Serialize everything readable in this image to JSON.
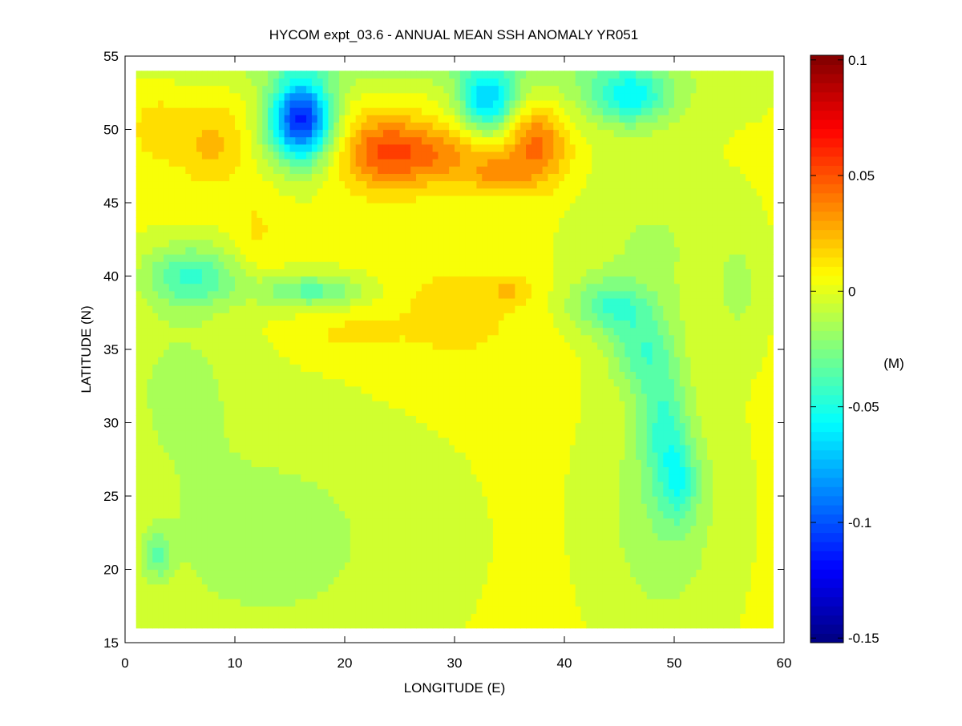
{
  "chart_data": {
    "type": "heatmap",
    "subtype": "filled-contour",
    "title": "HYCOM expt_03.6 - ANNUAL MEAN SSH ANOMALY YR051",
    "xlabel": "LONGITUDE (E)",
    "ylabel": "LATITUDE (N)",
    "xlim": [
      0,
      60
    ],
    "ylim": [
      15,
      55
    ],
    "data_extent": {
      "lon": [
        1,
        59
      ],
      "lat": [
        16,
        54
      ]
    },
    "xticks": [
      0,
      10,
      20,
      30,
      40,
      50,
      60
    ],
    "yticks": [
      15,
      20,
      25,
      30,
      35,
      40,
      45,
      50,
      55
    ],
    "colorbar": {
      "label": "(M)",
      "colormap": "jet",
      "range": [
        -0.152,
        0.102
      ],
      "ticks": [
        0.1,
        0.05,
        0,
        -0.05,
        -0.1,
        -0.15
      ],
      "tick_labels": [
        "0.1",
        "0.05",
        "0",
        "-0.05",
        "-0.1",
        "-0.15"
      ]
    },
    "field_model": {
      "base": 0.002,
      "features": [
        [
          16,
          50.7,
          -0.115,
          2.0,
          2.0
        ],
        [
          33,
          52.0,
          -0.065,
          1.8,
          1.6
        ],
        [
          46,
          52.3,
          -0.045,
          2.4,
          1.4
        ],
        [
          23.5,
          48.5,
          0.045,
          2.8,
          1.8
        ],
        [
          29,
          48.3,
          0.03,
          3.0,
          1.5
        ],
        [
          37.5,
          49.0,
          0.042,
          2.0,
          2.0
        ],
        [
          34,
          47.0,
          0.025,
          1.8,
          0.9
        ],
        [
          8,
          49.0,
          0.02,
          2.0,
          2.0
        ],
        [
          3,
          50.0,
          0.012,
          2.0,
          2.0
        ],
        [
          12,
          43.0,
          0.01,
          1.5,
          2.0
        ],
        [
          6,
          40.0,
          -0.042,
          3.0,
          1.5
        ],
        [
          17,
          39.0,
          -0.035,
          3.5,
          0.8
        ],
        [
          20,
          36.0,
          0.01,
          3.0,
          1.0
        ],
        [
          30,
          37.5,
          0.012,
          5.0,
          3.0
        ],
        [
          35,
          39.0,
          0.015,
          1.5,
          0.6
        ],
        [
          44,
          38.0,
          -0.035,
          2.5,
          1.3
        ],
        [
          47,
          35.0,
          -0.032,
          2.0,
          2.0
        ],
        [
          49,
          30.0,
          -0.032,
          1.5,
          3.0
        ],
        [
          50.5,
          26.0,
          -0.03,
          1.2,
          2.0
        ],
        [
          13,
          22.0,
          -0.016,
          10.0,
          6.0
        ],
        [
          49,
          24.0,
          -0.02,
          4.0,
          6.0
        ],
        [
          48,
          42.0,
          -0.013,
          5.0,
          4.0
        ],
        [
          5,
          33.0,
          -0.013,
          4.0,
          4.0
        ],
        [
          3,
          21.0,
          -0.03,
          0.8,
          1.0
        ],
        [
          22,
          54.5,
          -0.018,
          14.0,
          1.2
        ],
        [
          44,
          53.0,
          -0.015,
          8.0,
          2.0
        ],
        [
          56,
          39.0,
          -0.012,
          1.5,
          3.0
        ]
      ]
    }
  }
}
